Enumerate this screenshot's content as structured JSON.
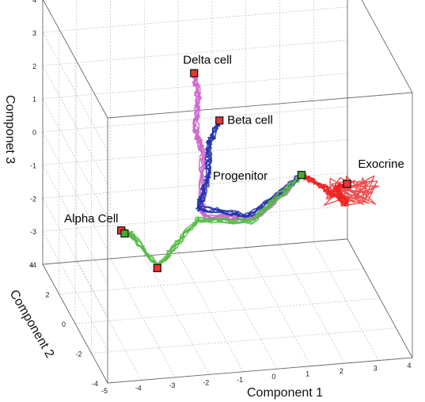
{
  "chart_data": {
    "type": "line",
    "title": "",
    "xlabel": "Component 1",
    "ylabel": "Component 2",
    "zlabel": "Componet 3",
    "xlim": [
      -5,
      4
    ],
    "ylim": [
      -4,
      4
    ],
    "zlim": [
      -4,
      4
    ],
    "xticks": [
      "-5",
      "-4",
      "-3",
      "-2",
      "-1",
      "0",
      "1",
      "2",
      "3",
      "4"
    ],
    "yticks": [
      "-4",
      "-2",
      "0",
      "2",
      "4"
    ],
    "zticks": [
      "-4",
      "-3",
      "-2",
      "-1",
      "0",
      "1",
      "2",
      "3",
      "4"
    ],
    "grid": true,
    "annotations": [
      {
        "text": "Delta cell",
        "point": [
          -1.2,
          1.2,
          2.7
        ]
      },
      {
        "text": "Beta cell",
        "point": [
          -0.5,
          1.0,
          1.3
        ]
      },
      {
        "text": "Alpha Cell",
        "point": [
          -4.0,
          -1.5,
          -0.6
        ]
      },
      {
        "text": "Progenitor",
        "point": [
          1.9,
          0.9,
          -0.5
        ]
      },
      {
        "text": "Exocrine",
        "point": [
          3.1,
          0.3,
          -0.6
        ]
      }
    ],
    "series": [
      {
        "color": "#cc66cc",
        "nodes": [
          [
            1.9,
            0.9,
            -0.5
          ],
          [
            0.5,
            0.7,
            -1.6
          ],
          [
            -1.0,
            0.9,
            -1.5
          ],
          [
            -1.1,
            0.7,
            -1.0
          ],
          [
            -1.0,
            1.0,
            0.4
          ],
          [
            -1.2,
            1.0,
            1.0
          ],
          [
            -1.1,
            1.1,
            2.0
          ],
          [
            -1.2,
            1.2,
            2.7
          ]
        ]
      },
      {
        "color": "#2233aa",
        "nodes": [
          [
            1.9,
            0.9,
            -0.5
          ],
          [
            0.4,
            0.9,
            -1.6
          ],
          [
            -1.1,
            1.0,
            -1.3
          ],
          [
            -0.9,
            0.8,
            -0.3
          ],
          [
            -0.8,
            1.0,
            0.6
          ],
          [
            -0.5,
            1.0,
            1.3
          ]
        ]
      },
      {
        "color": "#55bb44",
        "nodes": [
          [
            1.9,
            0.9,
            -0.5
          ],
          [
            0.3,
            0.5,
            -1.6
          ],
          [
            -1.3,
            0.3,
            -1.3
          ],
          [
            -3.1,
            -2.2,
            -1.5
          ],
          [
            -3.6,
            -1.6,
            -0.8
          ],
          [
            -4.0,
            -1.5,
            -0.6
          ]
        ]
      },
      {
        "color": "#ee2222",
        "nodes": [
          [
            1.9,
            0.9,
            -0.5
          ],
          [
            2.4,
            0.8,
            -0.8
          ],
          [
            3.1,
            0.3,
            -1.2
          ],
          [
            2.7,
            0.1,
            -0.6
          ],
          [
            3.1,
            0.3,
            -0.6
          ]
        ]
      }
    ],
    "end_markers": [
      {
        "color": "#ee3333",
        "point": [
          -1.2,
          1.2,
          2.7
        ]
      },
      {
        "color": "#ee3333",
        "point": [
          -0.5,
          1.0,
          1.3
        ]
      },
      {
        "color": "#ee3333",
        "point": [
          -4.0,
          -1.5,
          -0.6
        ]
      },
      {
        "color": "#44aa33",
        "point": [
          -3.9,
          -1.5,
          -0.7
        ]
      },
      {
        "color": "#ee3333",
        "point": [
          -3.1,
          -2.2,
          -1.5
        ]
      },
      {
        "color": "#44aa33",
        "point": [
          1.9,
          0.9,
          -0.5
        ]
      },
      {
        "color": "#ee3333",
        "point": [
          3.1,
          0.3,
          -0.6
        ]
      }
    ]
  }
}
